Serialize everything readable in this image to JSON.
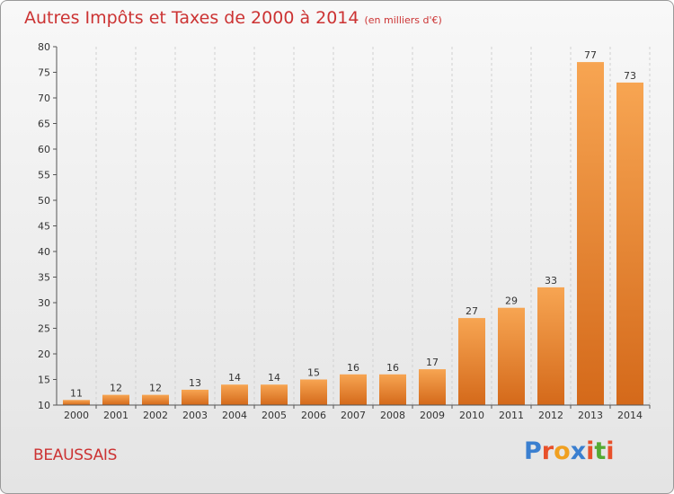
{
  "header": {
    "title": "Autres Impôts et Taxes de 2000 à 2014",
    "unit": "(en milliers d'€)"
  },
  "footer": {
    "place": "BEAUSSAIS",
    "brand": "Proxiti",
    "brand_letters": [
      {
        "ch": "P",
        "color": "#3a7fd0"
      },
      {
        "ch": "r",
        "color": "#e8502a"
      },
      {
        "ch": "o",
        "color": "#f0a020"
      },
      {
        "ch": "x",
        "color": "#3a7fd0"
      },
      {
        "ch": "i",
        "color": "#e8502a"
      },
      {
        "ch": "t",
        "color": "#55aa33"
      },
      {
        "ch": "i",
        "color": "#e8502a"
      }
    ]
  },
  "colors": {
    "title": "#cc3333",
    "bar_light": "#f7a552",
    "bar_dark": "#d4691a",
    "axis": "#555555",
    "grid": "#d0d0d0"
  },
  "chart_data": {
    "type": "bar",
    "title": "Autres Impôts et Taxes de 2000 à 2014 (en milliers d'€)",
    "xlabel": "",
    "ylabel": "",
    "categories": [
      "2000",
      "2001",
      "2002",
      "2003",
      "2004",
      "2005",
      "2006",
      "2007",
      "2008",
      "2009",
      "2010",
      "2011",
      "2012",
      "2013",
      "2014"
    ],
    "values": [
      11,
      12,
      12,
      13,
      14,
      14,
      15,
      16,
      16,
      17,
      27,
      29,
      33,
      77,
      73
    ],
    "ylim": [
      10,
      80
    ],
    "yticks": [
      10,
      15,
      20,
      25,
      30,
      35,
      40,
      45,
      50,
      55,
      60,
      65,
      70,
      75,
      80
    ],
    "grid": "vertical-dashed",
    "legend": "none"
  }
}
